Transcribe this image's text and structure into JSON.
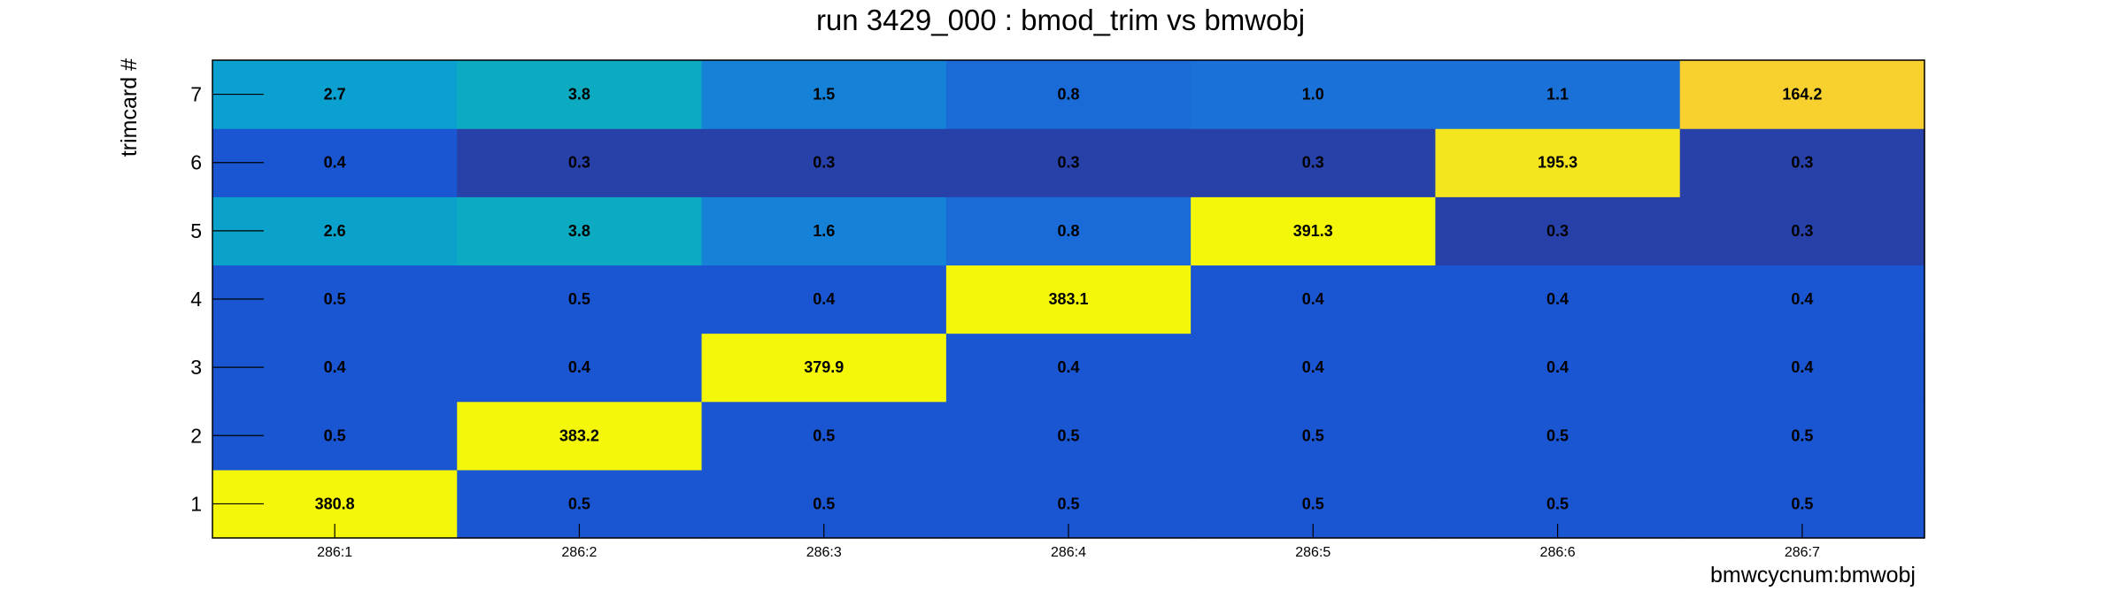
{
  "chart_data": {
    "type": "heatmap",
    "title": "run 3429_000 : bmod_trim vs bmwobj",
    "xlabel": "bmwcycnum:bmwobj",
    "ylabel": "trimcard #",
    "x_categories": [
      "286:1",
      "286:2",
      "286:3",
      "286:4",
      "286:5",
      "286:6",
      "286:7"
    ],
    "y_categories": [
      "1",
      "2",
      "3",
      "4",
      "5",
      "6",
      "7"
    ],
    "values": [
      [
        380.8,
        0.5,
        0.5,
        0.5,
        0.5,
        0.5,
        0.5
      ],
      [
        0.5,
        383.2,
        0.5,
        0.5,
        0.5,
        0.5,
        0.5
      ],
      [
        0.4,
        0.4,
        379.9,
        0.4,
        0.4,
        0.4,
        0.4
      ],
      [
        0.5,
        0.5,
        0.4,
        383.1,
        0.4,
        0.4,
        0.4
      ],
      [
        2.6,
        3.8,
        1.6,
        0.8,
        391.3,
        0.3,
        0.3
      ],
      [
        0.4,
        0.3,
        0.3,
        0.3,
        0.3,
        195.3,
        0.3
      ],
      [
        2.7,
        3.8,
        1.5,
        0.8,
        1.0,
        1.1,
        164.2
      ]
    ],
    "labels": [
      [
        "380.8",
        "0.5",
        "0.5",
        "0.5",
        "0.5",
        "0.5",
        "0.5"
      ],
      [
        "0.5",
        "383.2",
        "0.5",
        "0.5",
        "0.5",
        "0.5",
        "0.5"
      ],
      [
        "0.4",
        "0.4",
        "379.9",
        "0.4",
        "0.4",
        "0.4",
        "0.4"
      ],
      [
        "0.5",
        "0.5",
        "0.4",
        "383.1",
        "0.4",
        "0.4",
        "0.4"
      ],
      [
        "2.6",
        "3.8",
        "1.6",
        "0.8",
        "391.3",
        "0.3",
        "0.3"
      ],
      [
        "0.4",
        "0.3",
        "0.3",
        "0.3",
        "0.3",
        "195.3",
        "0.3"
      ],
      [
        "2.7",
        "3.8",
        "1.5",
        "0.8",
        "1.0",
        "1.1",
        "164.2"
      ]
    ],
    "colors": [
      [
        "#f5f70a",
        "#1a55d2",
        "#1a55d2",
        "#1a55d2",
        "#1a55d2",
        "#1a55d2",
        "#1a55d2"
      ],
      [
        "#1a55d2",
        "#f5f70a",
        "#1a55d2",
        "#1a55d2",
        "#1a55d2",
        "#1a55d2",
        "#1a55d2"
      ],
      [
        "#1a55d2",
        "#1a55d2",
        "#f5f70a",
        "#1a55d2",
        "#1a55d2",
        "#1a55d2",
        "#1a55d2"
      ],
      [
        "#1a55d2",
        "#1a55d2",
        "#1a55d2",
        "#f5f70a",
        "#1a55d2",
        "#1a55d2",
        "#1a55d2"
      ],
      [
        "#0aa2cb",
        "#0dabc2",
        "#1582d8",
        "#1a6bd8",
        "#f5f70a",
        "#2741a9",
        "#2741a9"
      ],
      [
        "#1a55d2",
        "#2741a9",
        "#2741a9",
        "#2741a9",
        "#2741a9",
        "#f4e51f",
        "#2741a9"
      ],
      [
        "#0aa0cf",
        "#0dabc2",
        "#1582d8",
        "#1a6bd8",
        "#1a72d8",
        "#1a72d8",
        "#f8d12f"
      ]
    ],
    "colorbar": "none",
    "grid": false
  }
}
